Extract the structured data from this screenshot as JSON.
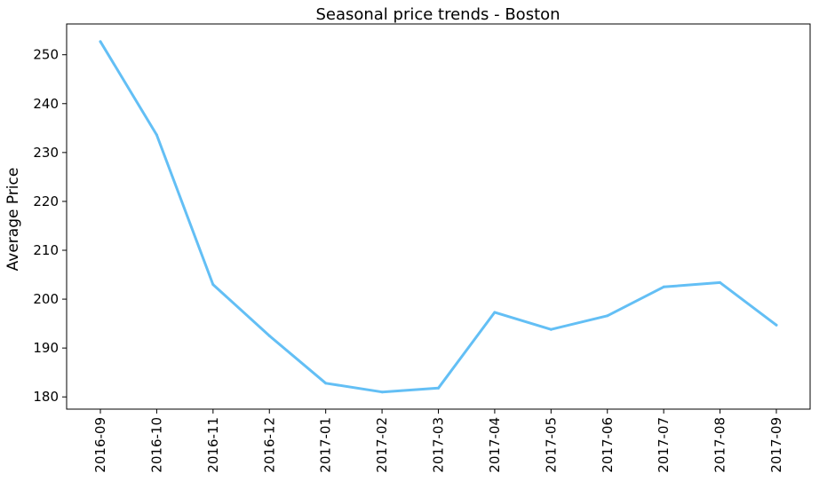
{
  "chart_data": {
    "type": "line",
    "title": "Seasonal price trends - Boston",
    "xlabel": "",
    "ylabel": "Average Price",
    "categories": [
      "2016-09",
      "2016-10",
      "2016-11",
      "2016-12",
      "2017-01",
      "2017-02",
      "2017-03",
      "2017-04",
      "2017-05",
      "2017-06",
      "2017-07",
      "2017-08",
      "2017-09"
    ],
    "values": [
      252.7,
      233.6,
      203.0,
      192.5,
      182.8,
      181.0,
      181.8,
      197.3,
      193.8,
      196.6,
      202.5,
      203.4,
      194.7
    ],
    "yticks": [
      180,
      190,
      200,
      210,
      220,
      230,
      240,
      250
    ],
    "ylim": [
      177.5,
      256.3
    ],
    "grid": false,
    "legend": "none",
    "line_color": "#63bff5",
    "axis_color": "#000000"
  }
}
